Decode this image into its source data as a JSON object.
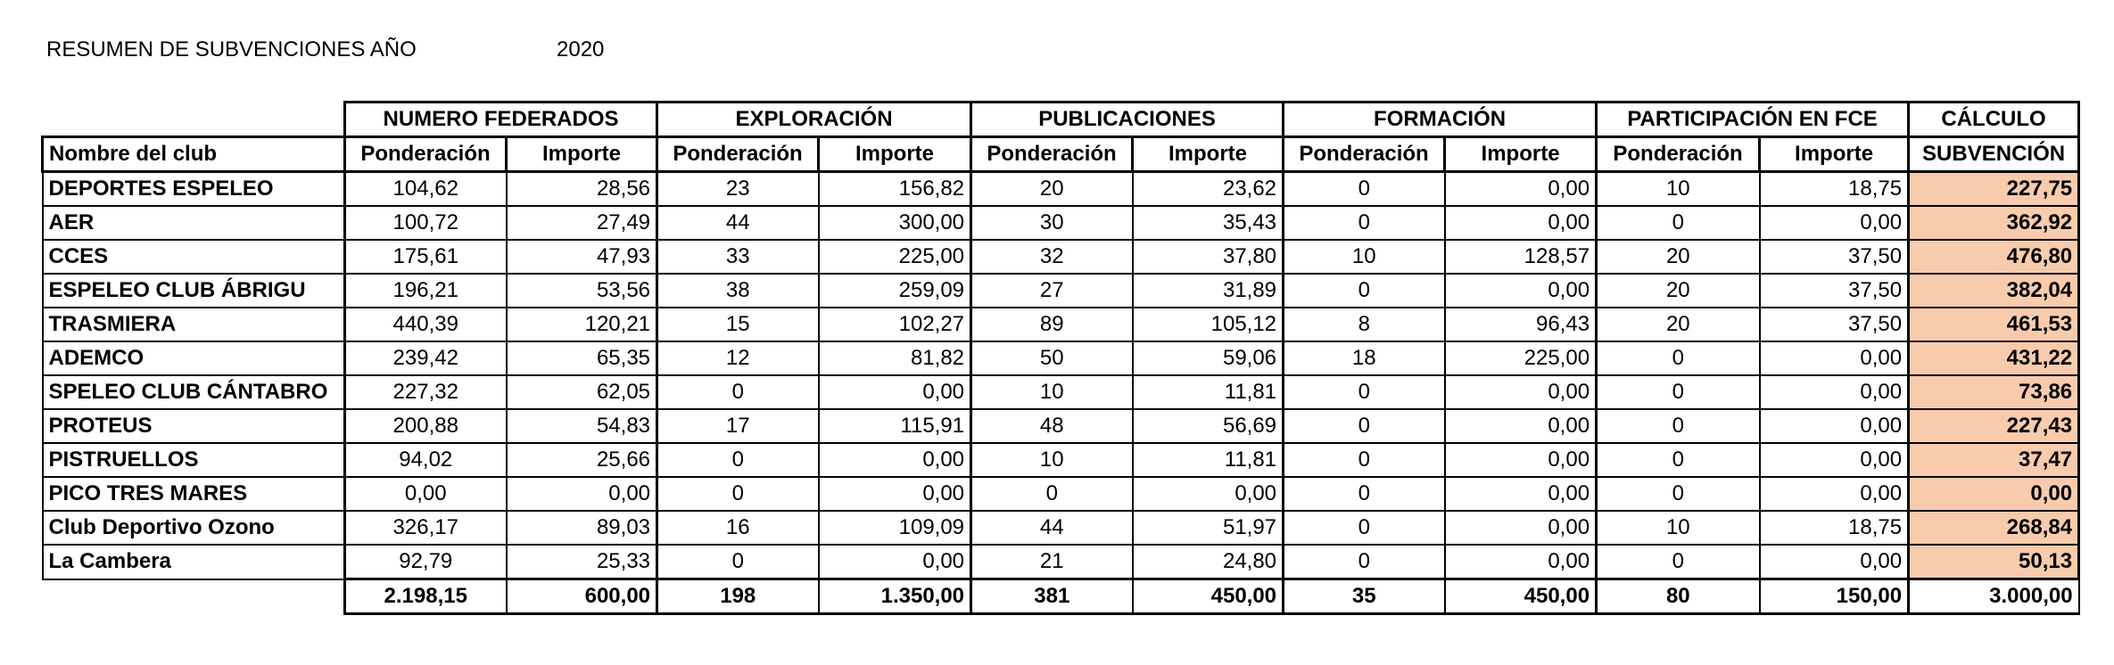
{
  "header": {
    "title": "RESUMEN DE SUBVENCIONES AÑO",
    "year": "2020"
  },
  "table": {
    "group_headers": [
      "NUMERO FEDERADOS",
      "EXPLORACIÓN",
      "PUBLICACIONES",
      "FORMACIÓN",
      "PARTICIPACIÓN EN FCE",
      "CÁLCULO"
    ],
    "sub_headers": [
      "Nombre del club",
      "Ponderación",
      "Importe",
      "Ponderación",
      "Importe",
      "Ponderación",
      "Importe",
      "Ponderación",
      "Importe",
      "Ponderación",
      "Importe",
      "SUBVENCIÓN"
    ],
    "rows": [
      [
        "DEPORTES ESPELEO",
        "104,62",
        "28,56",
        "23",
        "156,82",
        "20",
        "23,62",
        "0",
        "0,00",
        "10",
        "18,75",
        "227,75"
      ],
      [
        "AER",
        "100,72",
        "27,49",
        "44",
        "300,00",
        "30",
        "35,43",
        "0",
        "0,00",
        "0",
        "0,00",
        "362,92"
      ],
      [
        "CCES",
        "175,61",
        "47,93",
        "33",
        "225,00",
        "32",
        "37,80",
        "10",
        "128,57",
        "20",
        "37,50",
        "476,80"
      ],
      [
        "ESPELEO CLUB ÁBRIGU",
        "196,21",
        "53,56",
        "38",
        "259,09",
        "27",
        "31,89",
        "0",
        "0,00",
        "20",
        "37,50",
        "382,04"
      ],
      [
        "TRASMIERA",
        "440,39",
        "120,21",
        "15",
        "102,27",
        "89",
        "105,12",
        "8",
        "96,43",
        "20",
        "37,50",
        "461,53"
      ],
      [
        "ADEMCO",
        "239,42",
        "65,35",
        "12",
        "81,82",
        "50",
        "59,06",
        "18",
        "225,00",
        "0",
        "0,00",
        "431,22"
      ],
      [
        "SPELEO CLUB CÁNTABRO",
        "227,32",
        "62,05",
        "0",
        "0,00",
        "10",
        "11,81",
        "0",
        "0,00",
        "0",
        "0,00",
        "73,86"
      ],
      [
        "PROTEUS",
        "200,88",
        "54,83",
        "17",
        "115,91",
        "48",
        "56,69",
        "0",
        "0,00",
        "0",
        "0,00",
        "227,43"
      ],
      [
        "PISTRUELLOS",
        "94,02",
        "25,66",
        "0",
        "0,00",
        "10",
        "11,81",
        "0",
        "0,00",
        "0",
        "0,00",
        "37,47"
      ],
      [
        "PICO TRES MARES",
        "0,00",
        "0,00",
        "0",
        "0,00",
        "0",
        "0,00",
        "0",
        "0,00",
        "0",
        "0,00",
        "0,00"
      ],
      [
        "Club Deportivo Ozono",
        "326,17",
        "89,03",
        "16",
        "109,09",
        "44",
        "51,97",
        "0",
        "0,00",
        "10",
        "18,75",
        "268,84"
      ],
      [
        "La Cambera",
        "92,79",
        "25,33",
        "0",
        "0,00",
        "21",
        "24,80",
        "0",
        "0,00",
        "0",
        "0,00",
        "50,13"
      ]
    ],
    "totals": [
      "2.198,15",
      "600,00",
      "198",
      "1.350,00",
      "381",
      "450,00",
      "35",
      "450,00",
      "80",
      "150,00",
      "3.000,00"
    ]
  }
}
